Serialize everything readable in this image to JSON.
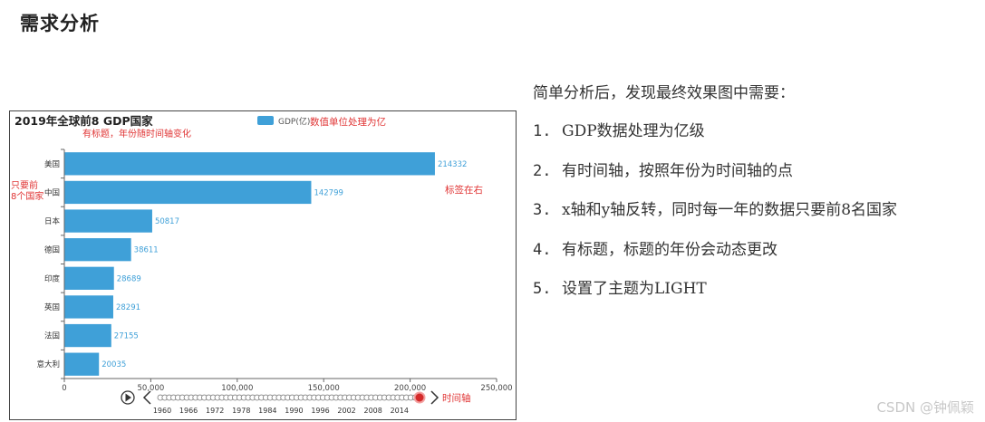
{
  "page": {
    "heading": "需求分析",
    "intro": "简单分析后，发现最终效果图中需要：",
    "requirements": [
      {
        "num": "1.",
        "text": "GDP数据处理为亿级"
      },
      {
        "num": "2.",
        "text": "有时间轴，按照年份为时间轴的点"
      },
      {
        "num": "3.",
        "text": "x轴和y轴反转，同时每一年的数据只要前8名国家"
      },
      {
        "num": "4.",
        "text": "有标题，标题的年份会动态更改"
      },
      {
        "num": "5.",
        "text": "设置了主题为LIGHT"
      }
    ],
    "watermark": "CSDN @钟佩颖"
  },
  "chart_data": {
    "type": "bar",
    "orientation": "horizontal",
    "title": "2019年全球前8 GDP国家",
    "categories": [
      "美国",
      "中国",
      "日本",
      "德国",
      "印度",
      "英国",
      "法国",
      "意大利"
    ],
    "series": [
      {
        "name": "GDP(亿)",
        "values": [
          214332,
          142799,
          50817,
          38611,
          28689,
          28291,
          27155,
          20035
        ]
      }
    ],
    "xlim": [
      0,
      250000
    ],
    "xticks": [
      "0",
      "50,000",
      "100,000",
      "150,000",
      "200,000",
      "250,000"
    ],
    "xtick_values": [
      0,
      50000,
      100000,
      150000,
      200000,
      250000
    ],
    "label_position": "right",
    "legend_position": "top-center",
    "grid": false,
    "bar_color": "#3fa0d8",
    "timeline": {
      "labels": [
        "1960",
        "1966",
        "1972",
        "1978",
        "1984",
        "1990",
        "1996",
        "2002",
        "2008",
        "2014"
      ],
      "point_count": 60,
      "current_index": 59,
      "current_color": "#d42a2a"
    },
    "annotations": {
      "title_note": "有标题，年份随时间轴变化",
      "unit_note": "数值单位处理为亿",
      "top8_note_line1": "只要前",
      "top8_note_line2": "8个国家",
      "label_note": "标签在右",
      "timeline_note": "时间轴",
      "color": "#e03434"
    }
  }
}
